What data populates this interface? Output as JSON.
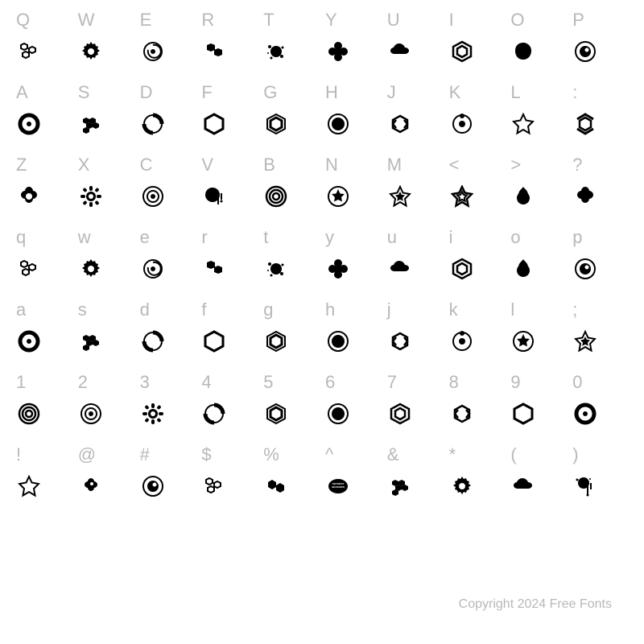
{
  "copyright": "Copyright 2024 Free Fonts",
  "label_color": "#b8b8b8",
  "glyph_color": "#000000",
  "background_color": "#ffffff",
  "label_fontsize": 22,
  "glyph_size": 28,
  "rows": [
    {
      "keys": [
        "Q",
        "W",
        "E",
        "R",
        "T",
        "Y",
        "U",
        "I",
        "O",
        "P"
      ],
      "glyphs": [
        "hex-cluster",
        "flower-badge",
        "spiral-ring",
        "hex-blob",
        "splatter",
        "flower-solid",
        "cloud",
        "hexagon-nested",
        "blob",
        "eye-circle"
      ]
    },
    {
      "keys": [
        "A",
        "S",
        "D",
        "F",
        "G",
        "H",
        "J",
        "K",
        "L",
        ":"
      ],
      "glyphs": [
        "ring-thick",
        "honeycomb",
        "ring-split",
        "hexagon-outline",
        "hexagon-double",
        "circle-filled-ring",
        "hex-bracket",
        "orbit-dot",
        "star-outline",
        "hex-arc"
      ]
    },
    {
      "keys": [
        "Z",
        "X",
        "C",
        "V",
        "B",
        "N",
        "M",
        "<",
        ">",
        "?"
      ],
      "glyphs": [
        "quatrefoil",
        "gear-flower",
        "target",
        "drip-circle",
        "concentric",
        "star-in-circle",
        "star-double",
        "star-nested",
        "blob-flame",
        "quatrefoil-solid"
      ]
    },
    {
      "keys": [
        "q",
        "w",
        "e",
        "r",
        "t",
        "y",
        "u",
        "i",
        "o",
        "p"
      ],
      "glyphs": [
        "hex-cluster",
        "flower-badge",
        "spiral-ring",
        "hex-blob",
        "splatter",
        "flower-solid",
        "cloud",
        "hexagon-nested",
        "blob-flame",
        "eye-circle"
      ]
    },
    {
      "keys": [
        "a",
        "s",
        "d",
        "f",
        "g",
        "h",
        "j",
        "k",
        "l",
        ";"
      ],
      "glyphs": [
        "ring-thick",
        "honeycomb",
        "ring-split",
        "hexagon-outline",
        "hexagon-double",
        "circle-filled-ring",
        "hex-bracket",
        "orbit-dot",
        "star-in-circle",
        "star-double"
      ]
    },
    {
      "keys": [
        "1",
        "2",
        "3",
        "4",
        "5",
        "6",
        "7",
        "8",
        "9",
        "0"
      ],
      "glyphs": [
        "concentric",
        "target",
        "gear-flower",
        "ring-split",
        "hexagon-double",
        "circle-filled-ring",
        "hexagon-nested",
        "hex-bracket",
        "hexagon-outline",
        "ring-thick"
      ]
    },
    {
      "keys": [
        "!",
        "@",
        "#",
        "$",
        "%",
        "^",
        "&",
        "*",
        "(",
        ")"
      ],
      "glyphs": [
        "star-outline",
        "eye-quatrefoil",
        "eye-circle",
        "hex-cluster",
        "hex-pair",
        "text-badge",
        "honeycomb",
        "flower-badge",
        "cloud",
        "splatter-drip"
      ]
    }
  ]
}
